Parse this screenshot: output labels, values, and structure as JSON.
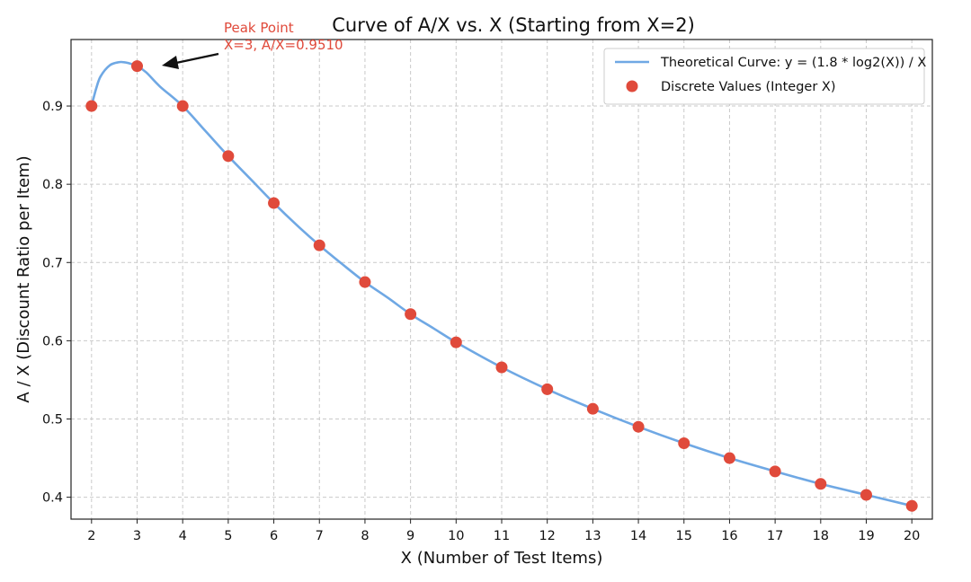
{
  "chart_data": {
    "type": "line",
    "title": "Curve of A/X vs. X (Starting from X=2)",
    "xlabel": "X (Number of Test Items)",
    "ylabel": "A / X (Discount Ratio per Item)",
    "xlim": [
      1.55,
      20.45
    ],
    "ylim": [
      0.372,
      0.985
    ],
    "xticks": [
      "2",
      "3",
      "4",
      "5",
      "6",
      "7",
      "8",
      "9",
      "10",
      "11",
      "12",
      "13",
      "14",
      "15",
      "16",
      "17",
      "18",
      "19",
      "20"
    ],
    "yticks": [
      "0.4",
      "0.5",
      "0.6",
      "0.7",
      "0.8",
      "0.9"
    ],
    "grid": true,
    "legend_position": "top-right",
    "series": [
      {
        "name": "Theoretical Curve: y = (1.8 * log2(X)) / X",
        "kind": "line",
        "color": "#6fa8e4",
        "x": [
          2,
          2.1,
          2.2,
          2.4,
          2.6,
          2.7,
          2.8,
          3.0,
          3.2,
          3.5,
          4,
          4.5,
          5,
          5.5,
          6,
          6.5,
          7,
          7.5,
          8,
          8.5,
          9,
          9.5,
          10,
          11,
          12,
          13,
          14,
          15,
          16,
          17,
          18,
          19,
          20
        ],
        "y": [
          0.9,
          0.922,
          0.938,
          0.952,
          0.956,
          0.956,
          0.955,
          0.951,
          0.943,
          0.925,
          0.9,
          0.868,
          0.836,
          0.806,
          0.776,
          0.748,
          0.722,
          0.698,
          0.675,
          0.655,
          0.634,
          0.616,
          0.598,
          0.566,
          0.538,
          0.513,
          0.49,
          0.469,
          0.45,
          0.433,
          0.417,
          0.403,
          0.389
        ]
      },
      {
        "name": "Discrete Values (Integer X)",
        "kind": "scatter",
        "color": "#e04a3b",
        "x": [
          2,
          3,
          4,
          5,
          6,
          7,
          8,
          9,
          10,
          11,
          12,
          13,
          14,
          15,
          16,
          17,
          18,
          19,
          20
        ],
        "y": [
          0.9,
          0.951,
          0.9,
          0.836,
          0.776,
          0.722,
          0.675,
          0.634,
          0.598,
          0.566,
          0.538,
          0.513,
          0.49,
          0.469,
          0.45,
          0.433,
          0.417,
          0.403,
          0.389
        ]
      }
    ],
    "annotation": {
      "line1": "Peak Point",
      "line2": "X=3, A/X=0.9510",
      "color": "#e04a3b",
      "point": [
        3,
        0.951
      ]
    }
  }
}
